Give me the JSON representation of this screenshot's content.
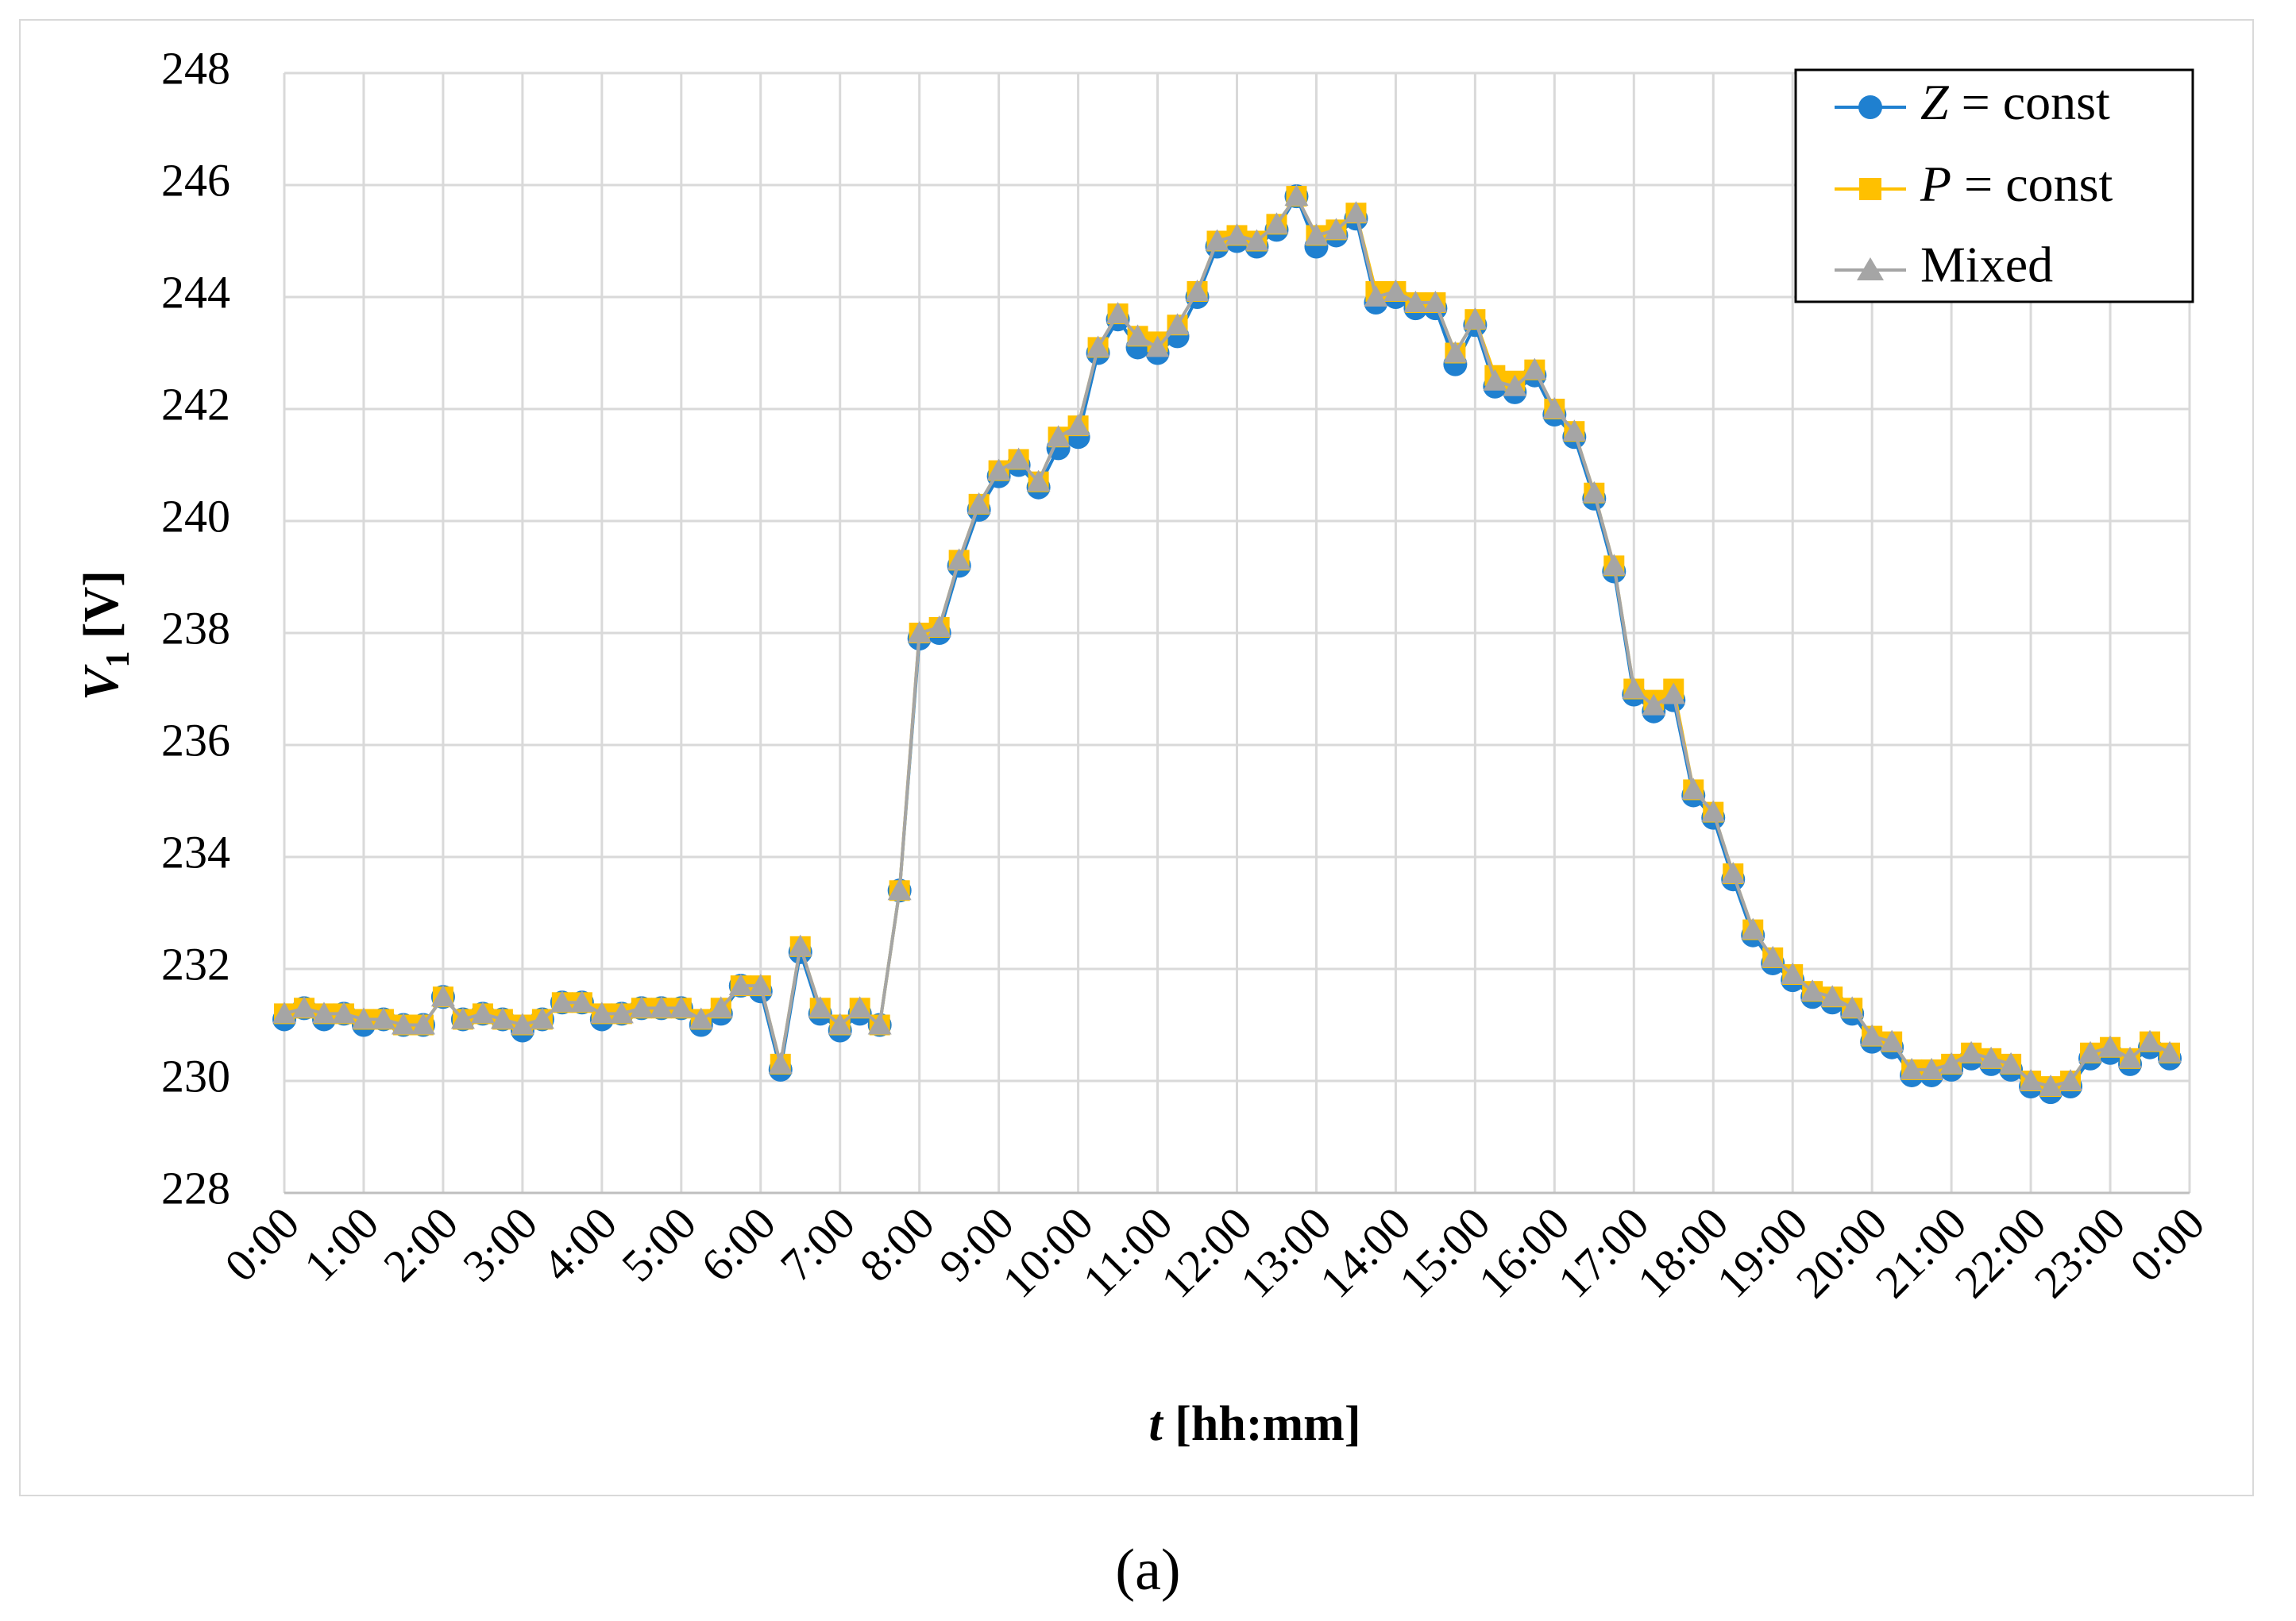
{
  "figure_label": "(a)",
  "chart_data": {
    "type": "line",
    "title": "",
    "xlabel": {
      "symbol": "t",
      "unit": "[hh:mm]"
    },
    "ylabel": {
      "symbol": "V",
      "subscript": "1",
      "unit": "[V]"
    },
    "ylim": [
      228,
      248
    ],
    "yticks": [
      228,
      230,
      232,
      234,
      236,
      238,
      240,
      242,
      244,
      246,
      248
    ],
    "x_ticks": [
      "0:00",
      "1:00",
      "2:00",
      "3:00",
      "4:00",
      "5:00",
      "6:00",
      "7:00",
      "8:00",
      "9:00",
      "10:00",
      "11:00",
      "12:00",
      "13:00",
      "14:00",
      "15:00",
      "16:00",
      "17:00",
      "18:00",
      "19:00",
      "20:00",
      "21:00",
      "22:00",
      "23:00",
      "0:00"
    ],
    "x_range_hours": [
      0,
      24
    ],
    "grid": true,
    "legend_position": "top-right",
    "x_hours": [
      0,
      0.25,
      0.5,
      0.75,
      1,
      1.25,
      1.5,
      1.75,
      2,
      2.25,
      2.5,
      2.75,
      3,
      3.25,
      3.5,
      3.75,
      4,
      4.25,
      4.5,
      4.75,
      5,
      5.25,
      5.5,
      5.75,
      6,
      6.25,
      6.5,
      6.75,
      7,
      7.25,
      7.5,
      7.75,
      8,
      8.25,
      8.5,
      8.75,
      9,
      9.25,
      9.5,
      9.75,
      10,
      10.25,
      10.5,
      10.75,
      11,
      11.25,
      11.5,
      11.75,
      12,
      12.25,
      12.5,
      12.75,
      13,
      13.25,
      13.5,
      13.75,
      14,
      14.25,
      14.5,
      14.75,
      15,
      15.25,
      15.5,
      15.75,
      16,
      16.25,
      16.5,
      16.75,
      17,
      17.25,
      17.5,
      17.75,
      18,
      18.25,
      18.5,
      18.75,
      19,
      19.25,
      19.5,
      19.75,
      20,
      20.25,
      20.5,
      20.75,
      21,
      21.25,
      21.5,
      21.75,
      22,
      22.25,
      22.5,
      22.75,
      23,
      23.25,
      23.5,
      23.75
    ],
    "series": [
      {
        "name_symbol": "Z",
        "name_text": " = const",
        "color": "#1f80d0",
        "marker": "circle",
        "values": [
          231.1,
          231.3,
          231.1,
          231.2,
          231.0,
          231.1,
          231.0,
          231.0,
          231.5,
          231.1,
          231.2,
          231.1,
          230.9,
          231.1,
          231.4,
          231.4,
          231.1,
          231.2,
          231.3,
          231.3,
          231.3,
          231.0,
          231.2,
          231.7,
          231.6,
          230.2,
          232.3,
          231.2,
          230.9,
          231.2,
          231.0,
          233.4,
          237.9,
          238.0,
          239.2,
          240.2,
          240.8,
          241.0,
          240.6,
          241.3,
          241.5,
          243.0,
          243.6,
          243.1,
          243.0,
          243.3,
          244.0,
          244.9,
          245.0,
          244.9,
          245.2,
          245.8,
          244.9,
          245.1,
          245.4,
          243.9,
          244.0,
          243.8,
          243.8,
          242.8,
          243.5,
          242.4,
          242.3,
          242.6,
          241.9,
          241.5,
          240.4,
          239.1,
          236.9,
          236.6,
          236.8,
          235.1,
          234.7,
          233.6,
          232.6,
          232.1,
          231.8,
          231.5,
          231.4,
          231.2,
          230.7,
          230.6,
          230.1,
          230.1,
          230.2,
          230.4,
          230.3,
          230.2,
          229.9,
          229.8,
          229.9,
          230.4,
          230.5,
          230.3,
          230.6,
          230.4
        ]
      },
      {
        "name_symbol": "P",
        "name_text": " = const",
        "color": "#ffc000",
        "marker": "square",
        "values": [
          231.2,
          231.3,
          231.2,
          231.2,
          231.1,
          231.1,
          231.0,
          231.0,
          231.5,
          231.1,
          231.2,
          231.1,
          231.0,
          231.1,
          231.4,
          231.4,
          231.2,
          231.2,
          231.3,
          231.3,
          231.3,
          231.1,
          231.3,
          231.7,
          231.7,
          230.3,
          232.4,
          231.3,
          231.0,
          231.3,
          231.0,
          233.4,
          238.0,
          238.1,
          239.3,
          240.3,
          240.9,
          241.1,
          240.7,
          241.5,
          241.7,
          243.1,
          243.7,
          243.3,
          243.2,
          243.5,
          244.1,
          245.0,
          245.1,
          245.0,
          245.3,
          245.8,
          245.1,
          245.2,
          245.5,
          244.1,
          244.1,
          243.9,
          243.9,
          243.0,
          243.6,
          242.6,
          242.5,
          242.7,
          242.0,
          241.6,
          240.5,
          239.2,
          237.0,
          236.8,
          237.0,
          235.2,
          234.8,
          233.7,
          232.7,
          232.2,
          231.9,
          231.6,
          231.5,
          231.3,
          230.8,
          230.7,
          230.2,
          230.2,
          230.3,
          230.5,
          230.4,
          230.3,
          230.0,
          229.9,
          230.0,
          230.5,
          230.6,
          230.4,
          230.7,
          230.5
        ]
      },
      {
        "name_text": "Mixed",
        "color": "#a5a5a5",
        "marker": "triangle",
        "values": [
          231.2,
          231.3,
          231.2,
          231.2,
          231.1,
          231.1,
          231.0,
          231.0,
          231.5,
          231.1,
          231.2,
          231.1,
          231.0,
          231.1,
          231.4,
          231.4,
          231.2,
          231.2,
          231.3,
          231.3,
          231.3,
          231.1,
          231.3,
          231.7,
          231.7,
          230.3,
          232.4,
          231.3,
          231.0,
          231.3,
          231.0,
          233.4,
          238.0,
          238.1,
          239.3,
          240.3,
          240.9,
          241.1,
          240.7,
          241.5,
          241.7,
          243.1,
          243.7,
          243.3,
          243.1,
          243.5,
          244.1,
          245.0,
          245.1,
          245.0,
          245.3,
          245.8,
          245.1,
          245.2,
          245.5,
          244.0,
          244.1,
          243.9,
          243.9,
          243.0,
          243.6,
          242.5,
          242.4,
          242.7,
          242.0,
          241.6,
          240.5,
          239.2,
          237.0,
          236.7,
          236.9,
          235.2,
          234.8,
          233.7,
          232.7,
          232.2,
          231.9,
          231.6,
          231.5,
          231.3,
          230.8,
          230.7,
          230.2,
          230.2,
          230.3,
          230.5,
          230.4,
          230.3,
          230.0,
          229.9,
          230.0,
          230.5,
          230.6,
          230.4,
          230.7,
          230.5
        ]
      }
    ]
  }
}
